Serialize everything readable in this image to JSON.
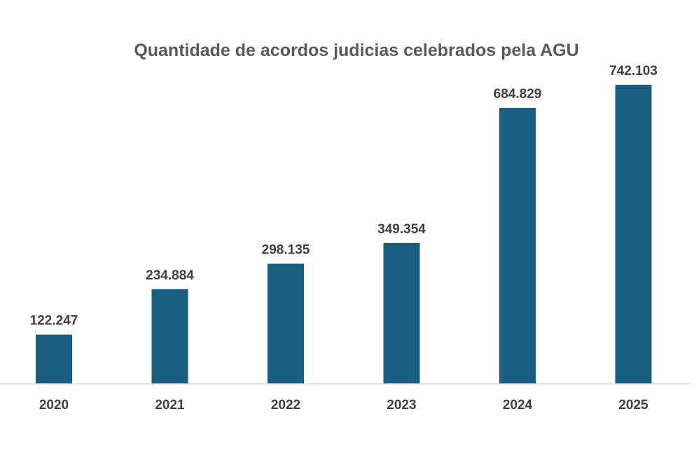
{
  "chart_data": {
    "type": "bar",
    "title": "Quantidade de acordos judicias celebrados pela AGU",
    "categories": [
      "2020",
      "2021",
      "2022",
      "2023",
      "2024",
      "2025"
    ],
    "values": [
      122247,
      234884,
      298135,
      349354,
      684829,
      742103
    ],
    "value_labels": [
      "122.247",
      "234.884",
      "298.135",
      "349.354",
      "684.829",
      "742.103"
    ],
    "xlabel": "",
    "ylabel": "",
    "ylim": [
      0,
      742103
    ],
    "grid": false,
    "legend": "none",
    "bar_color": "#1a5e82",
    "axis_color": "#d9d9d9"
  }
}
